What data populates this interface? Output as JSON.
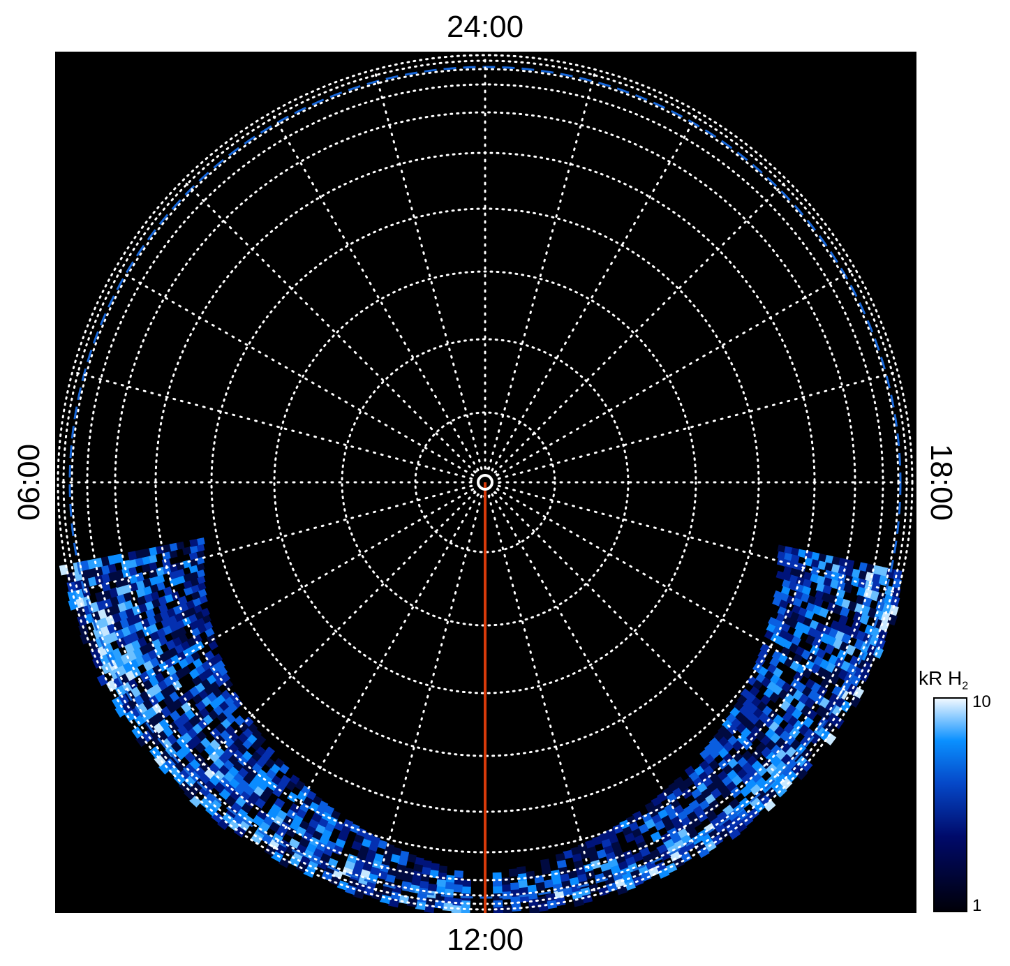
{
  "chart_data": {
    "type": "heatmap",
    "projection": "polar",
    "angular_labels": {
      "top": "24:00",
      "bottom": "12:00",
      "left": "06:00",
      "right": "18:00"
    },
    "spoke_interval_hours": 1,
    "colorbar": {
      "title": "kR H",
      "title_subscript": "2",
      "min_label": "1",
      "max_label": "10",
      "scale": "log",
      "range": [
        1,
        10
      ]
    },
    "colors": {
      "background": "#000000",
      "grid": "#ffffff",
      "dashed_ring": "#1565d8",
      "noon_line": "#d83a0a",
      "emission_low": "#000010",
      "emission_mid": "#0a8cff",
      "emission_high": "#f0f8ff"
    },
    "emission_regions": [
      "dawn-to-noon sector",
      "noon-to-dusk sector"
    ]
  }
}
